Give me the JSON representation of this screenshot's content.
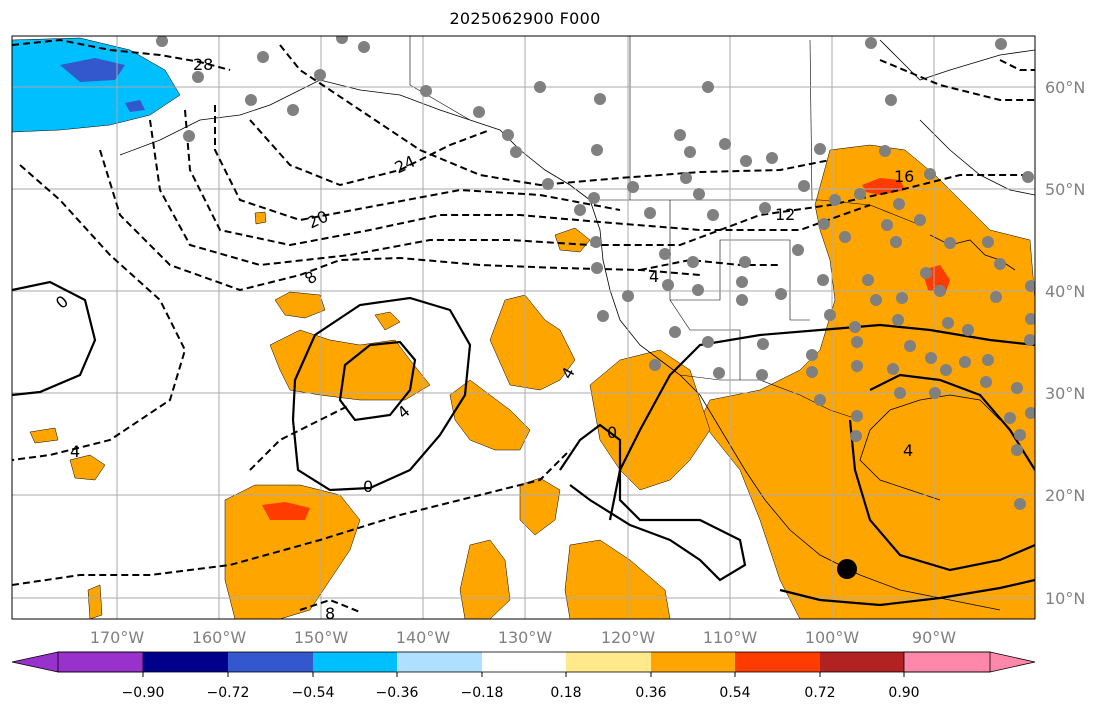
{
  "title": "2025062900 F000",
  "longitude_labels": [
    "170°W",
    "160°W",
    "150°W",
    "140°W",
    "130°W",
    "120°W",
    "110°W",
    "100°W",
    "90°W"
  ],
  "latitude_labels": [
    "60°N",
    "50°N",
    "40°N",
    "30°N",
    "20°N",
    "10°N"
  ],
  "contour_labels": [
    "28",
    "24",
    "20",
    "16",
    "12",
    "8",
    "4",
    "0",
    "4",
    "0",
    "4",
    "0",
    "4",
    "8",
    "4"
  ],
  "colorbar": {
    "tick_labels": [
      "−0.90",
      "−0.72",
      "−0.54",
      "−0.36",
      "−0.18",
      "0.18",
      "0.36",
      "0.54",
      "0.72",
      "0.90"
    ],
    "colors": [
      "#9932cc",
      "#00008b",
      "#3357cc",
      "#00bfff",
      "#b0e0ff",
      "#ffffff",
      "#ffe98a",
      "#ffa500",
      "#ff3c00",
      "#b22222",
      "#ff88aa"
    ]
  },
  "colors": {
    "positive_shading": "#ffa500",
    "strong_positive": "#ff3c00",
    "negative_shading": "#00bfff",
    "strong_negative": "#3357cc",
    "station_dots": "#808080",
    "grid": "#aaaaaa",
    "axis_labels": "#808080"
  }
}
